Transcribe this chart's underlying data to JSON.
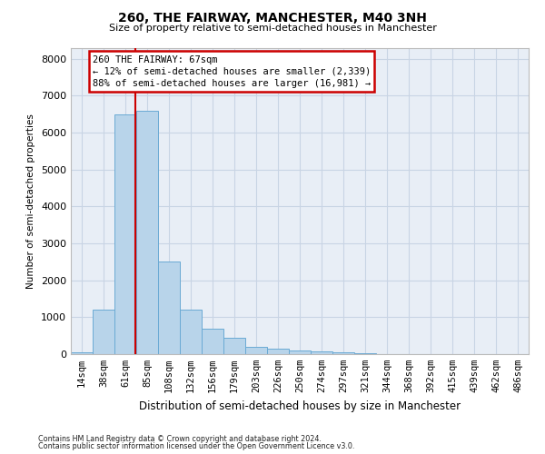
{
  "title1": "260, THE FAIRWAY, MANCHESTER, M40 3NH",
  "title2": "Size of property relative to semi-detached houses in Manchester",
  "xlabel": "Distribution of semi-detached houses by size in Manchester",
  "ylabel": "Number of semi-detached properties",
  "footer1": "Contains HM Land Registry data © Crown copyright and database right 2024.",
  "footer2": "Contains public sector information licensed under the Open Government Licence v3.0.",
  "bin_labels": [
    "14sqm",
    "38sqm",
    "61sqm",
    "85sqm",
    "108sqm",
    "132sqm",
    "156sqm",
    "179sqm",
    "203sqm",
    "226sqm",
    "250sqm",
    "274sqm",
    "297sqm",
    "321sqm",
    "344sqm",
    "368sqm",
    "392sqm",
    "415sqm",
    "439sqm",
    "462sqm",
    "486sqm"
  ],
  "bar_values": [
    50,
    1200,
    6500,
    6600,
    2500,
    1200,
    700,
    450,
    200,
    150,
    100,
    80,
    50,
    20,
    10,
    5,
    3,
    2,
    1,
    1,
    0
  ],
  "bar_color": "#b8d4ea",
  "bar_edge_color": "#6aaad4",
  "grid_color": "#c8d4e4",
  "background_color": "#e8eef6",
  "property_label": "260 THE FAIRWAY: 67sqm",
  "pct_smaller": 12,
  "count_smaller": "2,339",
  "pct_larger": 88,
  "count_larger": "16,981",
  "vline_color": "#cc0000",
  "vline_bin_index": 2,
  "annotation_box_color": "#ffffff",
  "annotation_box_edge_color": "#cc0000",
  "ylim": [
    0,
    8300
  ],
  "yticks": [
    0,
    1000,
    2000,
    3000,
    4000,
    5000,
    6000,
    7000,
    8000
  ]
}
